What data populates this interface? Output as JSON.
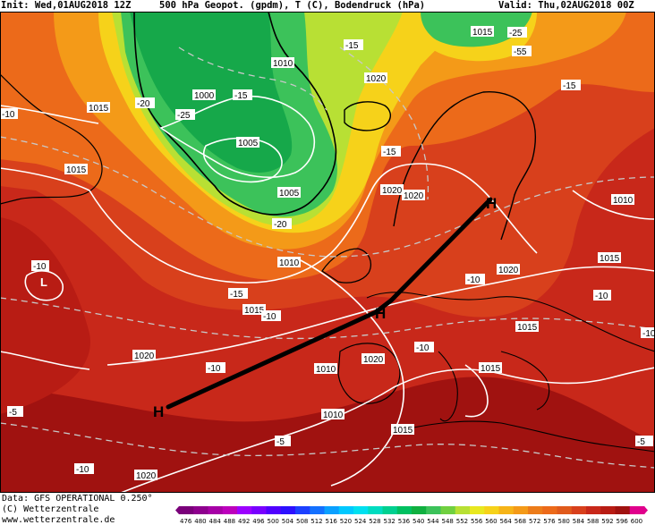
{
  "header": {
    "init": "Init: Wed,01AUG2018 12Z",
    "field": "500 hPa Geopot. (gpdm), T (C), Bodendruck (hPa)",
    "valid": "Valid: Thu,02AUG2018 00Z"
  },
  "footer": {
    "data_line": "Data: GFS OPERATIONAL 0.250°",
    "copyright_line": "(C) Wetterzentrale",
    "url_line": "www.wetterzentrale.de"
  },
  "colors": {
    "ridge_dark": "#a01210",
    "ridge": "#c8281a",
    "warm": "#d8401c",
    "orange": "#ec6a1a",
    "orange_light": "#f49a18",
    "yellow": "#f6d21a",
    "yellow_green": "#b8e034",
    "green": "#3cc25a",
    "green_dark": "#16a84a",
    "isobar": "#ffffff",
    "isotherm": "#c8c8c8",
    "coast": "#000000",
    "axis_line": "#000000"
  },
  "colorbar": {
    "ticks": [
      "476",
      "480",
      "484",
      "488",
      "492",
      "496",
      "500",
      "504",
      "508",
      "512",
      "516",
      "520",
      "524",
      "528",
      "532",
      "536",
      "540",
      "544",
      "548",
      "552",
      "556",
      "560",
      "564",
      "568",
      "572",
      "576",
      "580",
      "584",
      "588",
      "592",
      "596",
      "600"
    ],
    "colors": [
      "#7a007a",
      "#8e008e",
      "#a600a6",
      "#bc00bc",
      "#9c00ff",
      "#7800ff",
      "#5000ff",
      "#2c10ff",
      "#1c40ff",
      "#1470ff",
      "#0aa0ff",
      "#00c8ff",
      "#00e0f0",
      "#00dcc0",
      "#00d090",
      "#00c060",
      "#10b040",
      "#3cc25a",
      "#70d040",
      "#b8e034",
      "#e8e820",
      "#f6d21a",
      "#f6b418",
      "#f49a18",
      "#ec7c1a",
      "#ec6a1a",
      "#e05a1c",
      "#d8401c",
      "#c8281a",
      "#b81c14",
      "#a01210",
      "#e0008c"
    ]
  },
  "map_labels": {
    "pressure_centers": [
      {
        "letter": "H",
        "role": "high-west"
      },
      {
        "letter": "H",
        "role": "high-central"
      },
      {
        "letter": "H",
        "role": "high-east"
      },
      {
        "letter": "L",
        "role": "low-atlantic"
      }
    ],
    "isobar_values": [
      "1015",
      "1015",
      "1015",
      "1010",
      "1020",
      "1020",
      "1020",
      "1010",
      "1005",
      "1005",
      "1000",
      "1015",
      "1020",
      "1020",
      "1010",
      "1010",
      "1015",
      "1015",
      "1020",
      "1015",
      "1010",
      "1015",
      "1020",
      "1015",
      "1010",
      "1015"
    ],
    "isotherm_values": [
      "-15",
      "-15",
      "-20",
      "-20",
      "-25",
      "-25",
      "-15",
      "-10",
      "-15",
      "-10",
      "-10",
      "-10",
      "-10",
      "-5",
      "-5",
      "-5",
      "-10",
      "-10",
      "-10",
      "-10",
      "-15",
      "-55",
      "-20",
      "-20",
      "-5",
      "-10",
      "-5"
    ]
  }
}
